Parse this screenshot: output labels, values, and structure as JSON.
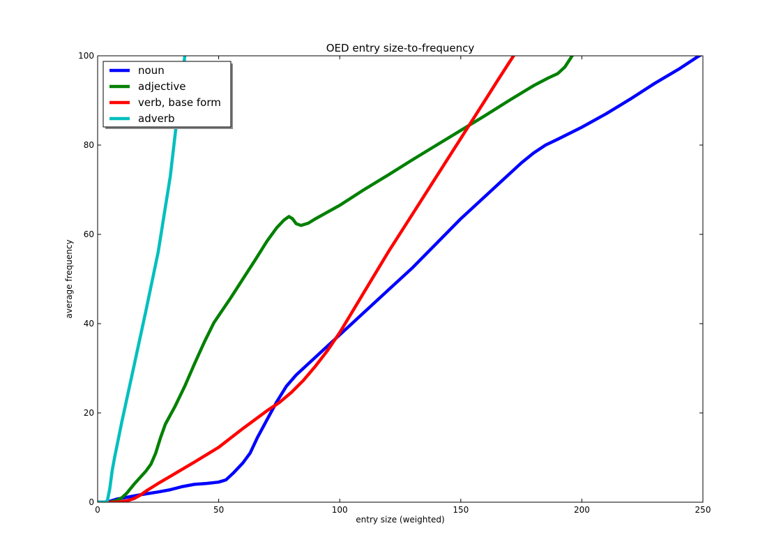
{
  "chart_data": {
    "type": "line",
    "title": "OED entry size-to-frequency",
    "xlabel": "entry size (weighted)",
    "ylabel": "average frequency",
    "xlim": [
      0,
      250
    ],
    "ylim": [
      0,
      100
    ],
    "xticks": [
      "0",
      "50",
      "100",
      "150",
      "200",
      "250"
    ],
    "yticks": [
      "0",
      "20",
      "40",
      "60",
      "80",
      "100"
    ],
    "grid": false,
    "legend_position": "upper-left",
    "series": [
      {
        "name": "noun",
        "color": "#0000ff",
        "points": [
          [
            0,
            0
          ],
          [
            3,
            0
          ],
          [
            5,
            0.2
          ],
          [
            8,
            0.7
          ],
          [
            12,
            1.1
          ],
          [
            18,
            1.7
          ],
          [
            25,
            2.3
          ],
          [
            30,
            2.8
          ],
          [
            35,
            3.5
          ],
          [
            40,
            4.0
          ],
          [
            45,
            4.2
          ],
          [
            50,
            4.5
          ],
          [
            53,
            5.0
          ],
          [
            56,
            6.5
          ],
          [
            60,
            8.8
          ],
          [
            63,
            11
          ],
          [
            66,
            14.5
          ],
          [
            70,
            18.5
          ],
          [
            74,
            22.5
          ],
          [
            78,
            26
          ],
          [
            82,
            28.5
          ],
          [
            90,
            32.5
          ],
          [
            100,
            37.5
          ],
          [
            110,
            42.5
          ],
          [
            120,
            47.5
          ],
          [
            130,
            52.5
          ],
          [
            140,
            58
          ],
          [
            150,
            63.5
          ],
          [
            160,
            68.5
          ],
          [
            170,
            73.5
          ],
          [
            175,
            76
          ],
          [
            180,
            78.2
          ],
          [
            185,
            80
          ],
          [
            190,
            81.3
          ],
          [
            200,
            84
          ],
          [
            210,
            87
          ],
          [
            220,
            90.3
          ],
          [
            230,
            93.8
          ],
          [
            240,
            97
          ],
          [
            247,
            99.5
          ],
          [
            250,
            100.5
          ]
        ]
      },
      {
        "name": "adjective",
        "color": "#008000",
        "points": [
          [
            0,
            0
          ],
          [
            5,
            0
          ],
          [
            8,
            0.4
          ],
          [
            10,
            1.0
          ],
          [
            12,
            2.0
          ],
          [
            15,
            4.0
          ],
          [
            18,
            5.8
          ],
          [
            20,
            7.0
          ],
          [
            22,
            8.5
          ],
          [
            24,
            11
          ],
          [
            26,
            14.5
          ],
          [
            28,
            17.5
          ],
          [
            32,
            21.5
          ],
          [
            36,
            26
          ],
          [
            40,
            31
          ],
          [
            44,
            35.8
          ],
          [
            48,
            40.2
          ],
          [
            50,
            41.8
          ],
          [
            55,
            45.8
          ],
          [
            60,
            50
          ],
          [
            65,
            54.2
          ],
          [
            70,
            58.5
          ],
          [
            74,
            61.5
          ],
          [
            77,
            63.2
          ],
          [
            79,
            64
          ],
          [
            80.5,
            63.5
          ],
          [
            82,
            62.4
          ],
          [
            84,
            62.0
          ],
          [
            87,
            62.5
          ],
          [
            90,
            63.5
          ],
          [
            95,
            65.0
          ],
          [
            100,
            66.5
          ],
          [
            110,
            70.0
          ],
          [
            120,
            73.3
          ],
          [
            130,
            76.7
          ],
          [
            140,
            80.0
          ],
          [
            150,
            83.3
          ],
          [
            160,
            86.6
          ],
          [
            170,
            90.0
          ],
          [
            180,
            93.3
          ],
          [
            186,
            95
          ],
          [
            190,
            96
          ],
          [
            193,
            97.5
          ],
          [
            196,
            100
          ],
          [
            198,
            102
          ]
        ]
      },
      {
        "name": "verb, base form",
        "color": "#ff0000",
        "points": [
          [
            0,
            0
          ],
          [
            8,
            0
          ],
          [
            12,
            0.3
          ],
          [
            15,
            0.8
          ],
          [
            18,
            1.7
          ],
          [
            20,
            2.5
          ],
          [
            25,
            4.2
          ],
          [
            30,
            5.8
          ],
          [
            40,
            9.0
          ],
          [
            50,
            12.3
          ],
          [
            60,
            16.5
          ],
          [
            70,
            20.5
          ],
          [
            75,
            22.3
          ],
          [
            80,
            24.6
          ],
          [
            85,
            27.3
          ],
          [
            90,
            30.5
          ],
          [
            95,
            34
          ],
          [
            100,
            38
          ],
          [
            105,
            42.5
          ],
          [
            110,
            47
          ],
          [
            120,
            56
          ],
          [
            130,
            64.5
          ],
          [
            140,
            73
          ],
          [
            150,
            81.5
          ],
          [
            160,
            90
          ],
          [
            165,
            94.3
          ],
          [
            170,
            98.5
          ],
          [
            173,
            101
          ]
        ]
      },
      {
        "name": "adverb",
        "color": "#00bfbf",
        "points": [
          [
            0,
            0
          ],
          [
            3,
            0
          ],
          [
            4,
            0.3
          ],
          [
            5,
            3
          ],
          [
            6,
            7
          ],
          [
            7,
            10
          ],
          [
            10,
            18
          ],
          [
            15,
            30.5
          ],
          [
            20,
            43
          ],
          [
            25,
            56
          ],
          [
            30,
            73
          ],
          [
            33,
            87
          ],
          [
            35,
            95
          ],
          [
            36,
            100
          ],
          [
            37,
            103
          ]
        ]
      }
    ]
  }
}
